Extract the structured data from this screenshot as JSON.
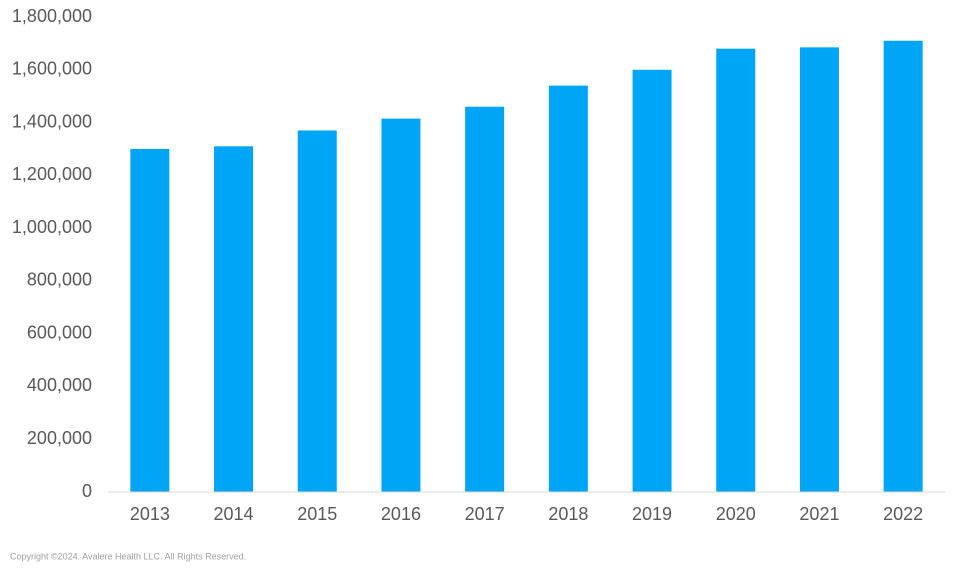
{
  "chart_data": {
    "type": "bar",
    "categories": [
      "2013",
      "2014",
      "2015",
      "2016",
      "2017",
      "2018",
      "2019",
      "2020",
      "2021",
      "2022"
    ],
    "values": [
      1300000,
      1310000,
      1370000,
      1415000,
      1460000,
      1540000,
      1600000,
      1680000,
      1685000,
      1710000
    ],
    "color": "#00a6f5",
    "ylim": [
      0,
      1800000
    ],
    "yticks": [
      0,
      {
        "value": 200000,
        "label": "200,000"
      },
      {
        "value": 400000,
        "label": "400,000"
      },
      {
        "value": 600000,
        "label": "600,000"
      },
      {
        "value": 800000,
        "label": "800,000"
      },
      {
        "value": 1000000,
        "label": "1,000,000"
      },
      {
        "value": 1200000,
        "label": "1,200,000"
      },
      {
        "value": 1400000,
        "label": "1,400,000"
      },
      {
        "value": 1600000,
        "label": "1,600,000"
      },
      {
        "value": 1800000,
        "label": "1,800,000"
      }
    ],
    "grid": false,
    "footnote": "Copyright ©2024. Avalere Health LLC. All Rights Reserved."
  }
}
